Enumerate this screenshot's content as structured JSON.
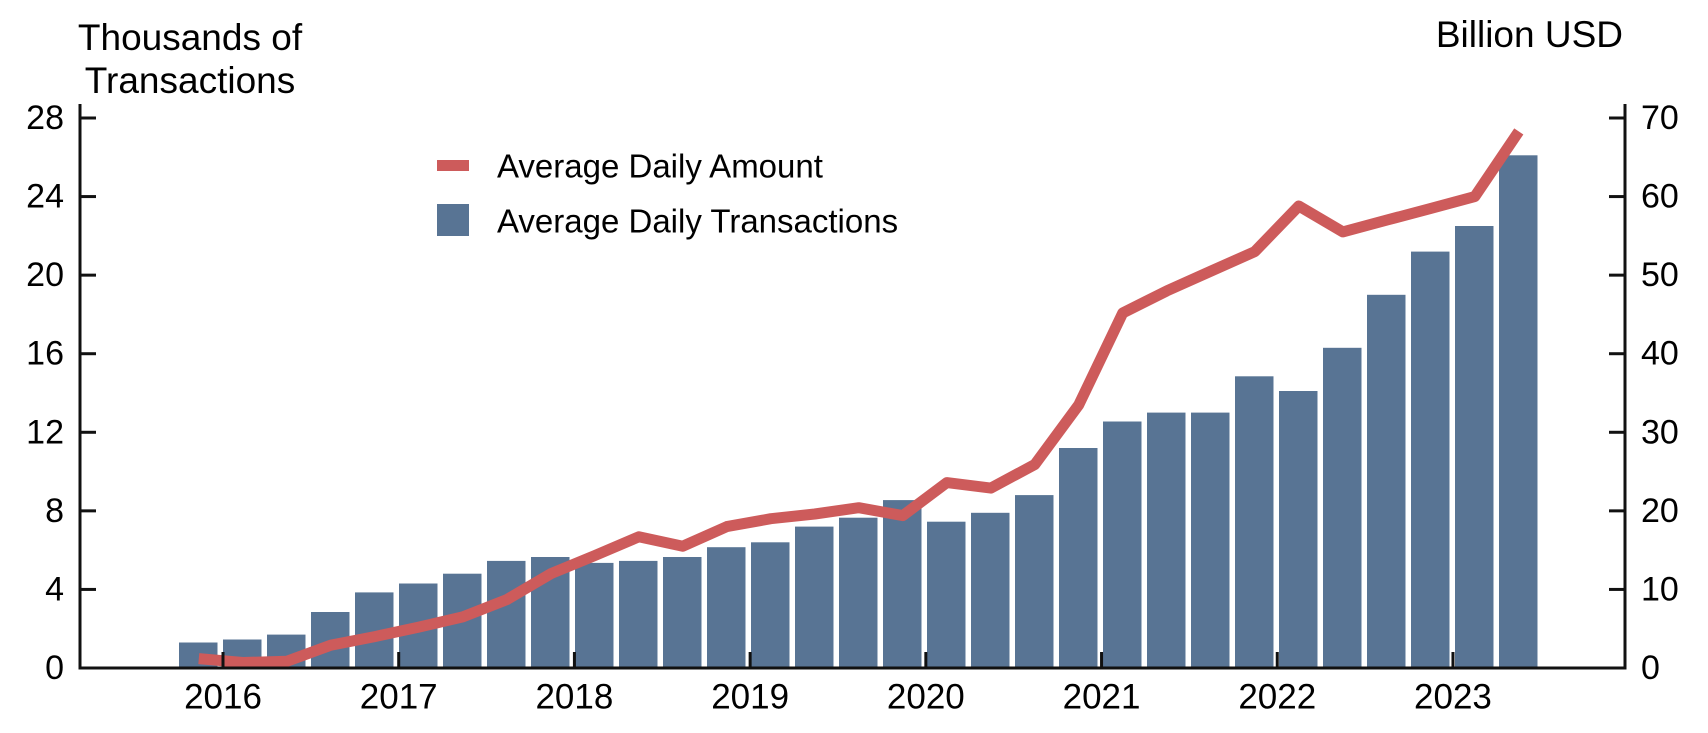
{
  "chart_data": {
    "type": "bar-line-combo",
    "titles": {
      "left_line1": "Thousands of",
      "left_line2": "Transactions",
      "right": "Billion USD"
    },
    "legend": [
      {
        "label": "Average Daily Amount",
        "marker": "line-dash",
        "color": "#cd5b5b"
      },
      {
        "label": "Average Daily Transactions",
        "marker": "square",
        "color": "#587494"
      }
    ],
    "categories": [
      "2015 Q4",
      "2016 Q1",
      "2016 Q2",
      "2016 Q3",
      "2016 Q4",
      "2017 Q1",
      "2017 Q2",
      "2017 Q3",
      "2017 Q4",
      "2018 Q1",
      "2018 Q2",
      "2018 Q3",
      "2018 Q4",
      "2019 Q1",
      "2019 Q2",
      "2019 Q3",
      "2019 Q4",
      "2020 Q1",
      "2020 Q2",
      "2020 Q3",
      "2020 Q4",
      "2021 Q1",
      "2021 Q2",
      "2021 Q3",
      "2021 Q4",
      "2022 Q1",
      "2022 Q2",
      "2022 Q3",
      "2022 Q4",
      "2023 Q1",
      "2023 Q2"
    ],
    "series": [
      {
        "name": "Average Daily Transactions",
        "type": "bar",
        "axis": "left",
        "unit": "thousands of transactions",
        "color": "#587494",
        "values": [
          1.3,
          1.45,
          1.7,
          2.85,
          3.85,
          4.3,
          4.8,
          5.45,
          5.65,
          5.35,
          5.45,
          5.65,
          6.15,
          6.4,
          7.2,
          7.65,
          8.55,
          7.45,
          7.9,
          8.8,
          11.2,
          12.55,
          13.0,
          13.0,
          14.85,
          14.1,
          16.3,
          19.0,
          21.2,
          22.5,
          26.1
        ]
      },
      {
        "name": "Average Daily Amount",
        "type": "line",
        "axis": "right",
        "unit": "billion USD",
        "color": "#cd5b5b",
        "values": [
          1.2,
          0.7,
          0.85,
          2.9,
          4.0,
          5.2,
          6.5,
          8.7,
          12.0,
          14.3,
          16.7,
          15.5,
          18.0,
          19.0,
          19.6,
          20.4,
          19.4,
          23.6,
          22.9,
          25.9,
          33.5,
          45.2,
          48.0,
          50.5,
          53.0,
          58.8,
          55.5,
          57.0,
          58.5,
          60.0,
          68.3
        ]
      }
    ],
    "left_axis": {
      "label": "Thousands of Transactions",
      "min": 0,
      "max": 28,
      "ticks": [
        0,
        4,
        8,
        12,
        16,
        20,
        24,
        28
      ]
    },
    "right_axis": {
      "label": "Billion USD",
      "min": 0,
      "max": 70,
      "ticks": [
        0,
        10,
        20,
        30,
        40,
        50,
        60,
        70
      ]
    },
    "x_axis": {
      "year_labels": [
        "2016",
        "2017",
        "2018",
        "2019",
        "2020",
        "2021",
        "2022",
        "2023"
      ]
    },
    "layout_hints": {
      "grid": false,
      "legend_position": "upper-left-inside",
      "bars_per_year": 4
    }
  }
}
